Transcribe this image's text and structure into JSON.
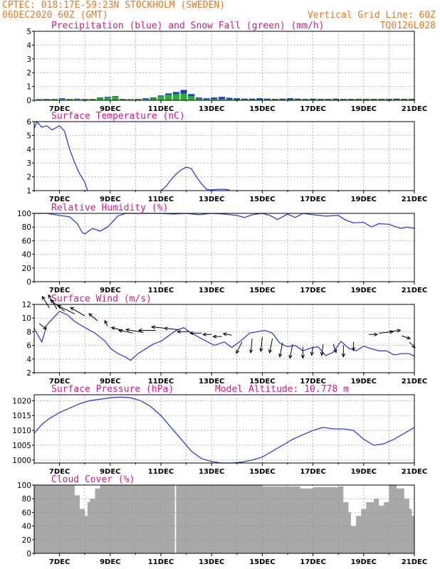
{
  "header": {
    "line1": "CPTEC:  018:17E-59:23N  STOCKHOLM (SWEDEN)",
    "line2_left": "06DEC2020 60Z (GMT)",
    "line2_right": "Vertical Grid Line: 60Z",
    "code": "TQ0126L028"
  },
  "colors": {
    "header": "#e07a1f",
    "title": "#e0148c",
    "line": "#2a3fe0",
    "precip": "#1a38d8",
    "snow": "#22b822",
    "cloud": "#a8a8a8",
    "wind_arrow": "#000000"
  },
  "chart_data": [
    {
      "type": "bar",
      "title": "Precipitation (blue) and Snow Fall (green) (mm/h)",
      "x_range": [
        6.0,
        21.0
      ],
      "x_ticks": [
        "7DEC",
        "9DEC",
        "11DEC",
        "13DEC",
        "15DEC",
        "17DEC",
        "19DEC",
        "21DEC"
      ],
      "ylim": [
        0,
        5
      ],
      "y_ticks": [
        "0",
        "1",
        "2",
        "3",
        "4",
        "5"
      ],
      "grid": true,
      "series": [
        {
          "name": "Precipitation",
          "x": [
            6.2,
            6.5,
            6.8,
            7.1,
            7.4,
            7.7,
            8.0,
            8.3,
            8.6,
            8.9,
            9.2,
            9.5,
            9.8,
            10.1,
            10.4,
            10.7,
            11.0,
            11.3,
            11.6,
            11.9,
            12.2,
            12.5,
            12.8,
            13.1,
            13.4,
            13.7,
            14.0,
            14.3,
            14.6,
            14.9,
            15.2,
            15.5,
            15.8,
            16.1,
            16.4,
            16.7,
            17.0,
            17.3,
            17.6,
            17.9,
            18.2,
            18.5,
            18.8,
            19.1,
            19.4,
            19.7,
            20.0,
            20.3,
            20.6,
            20.9
          ],
          "values": [
            0.08,
            0.1,
            0.1,
            0.15,
            0.1,
            0.12,
            0.1,
            0.1,
            0.2,
            0.25,
            0.3,
            0.1,
            0.08,
            0.1,
            0.15,
            0.2,
            0.35,
            0.5,
            0.6,
            0.75,
            0.45,
            0.2,
            0.15,
            0.2,
            0.25,
            0.18,
            0.15,
            0.12,
            0.12,
            0.15,
            0.12,
            0.1,
            0.12,
            0.15,
            0.12,
            0.1,
            0.12,
            0.1,
            0.1,
            0.12,
            0.1,
            0.1,
            0.1,
            0.1,
            0.1,
            0.1,
            0.1,
            0.12,
            0.1,
            0.1
          ]
        },
        {
          "name": "Snow Fall",
          "x": [
            6.2,
            6.5,
            6.8,
            7.1,
            7.4,
            7.7,
            8.0,
            8.3,
            8.6,
            8.9,
            9.2,
            9.5,
            9.8,
            10.1,
            10.4,
            10.7,
            11.0,
            11.3,
            11.6,
            11.9,
            12.2,
            12.5,
            12.8,
            13.1,
            13.4,
            13.7,
            14.0,
            14.3,
            14.6,
            14.9,
            15.2,
            15.5,
            15.8,
            16.1,
            16.4,
            16.7,
            17.0,
            17.3,
            17.6,
            17.9,
            18.2,
            18.5,
            18.8,
            19.1,
            19.4,
            19.7,
            20.0,
            20.3,
            20.6,
            20.9
          ],
          "values": [
            0.05,
            0.08,
            0.08,
            0.1,
            0.08,
            0.1,
            0.08,
            0.08,
            0.15,
            0.2,
            0.25,
            0.08,
            0.05,
            0.08,
            0.1,
            0.15,
            0.3,
            0.4,
            0.45,
            0.5,
            0.3,
            0.12,
            0.08,
            0.1,
            0.1,
            0.08,
            0.05,
            0.05,
            0.05,
            0.05,
            0.05,
            0.05,
            0.05,
            0.05,
            0.05,
            0.05,
            0.05,
            0.05,
            0.05,
            0.05,
            0.05,
            0.05,
            0.05,
            0.05,
            0.05,
            0.05,
            0.05,
            0.05,
            0.05,
            0.05
          ]
        }
      ]
    },
    {
      "type": "line",
      "title": "Surface Temperature (nC)",
      "x_range": [
        6.0,
        21.0
      ],
      "x_ticks": [
        "7DEC",
        "9DEC",
        "11DEC",
        "13DEC",
        "15DEC",
        "17DEC",
        "19DEC",
        "21DEC"
      ],
      "ylim": [
        1,
        6
      ],
      "y_ticks": [
        "1",
        "2",
        "3",
        "4",
        "5",
        "6"
      ],
      "grid": true,
      "series": [
        {
          "x": [
            6.0,
            6.1,
            6.3,
            6.5,
            6.7,
            6.9,
            7.0,
            7.2,
            7.4,
            7.6,
            7.8,
            8.0,
            8.1
          ],
          "values": [
            5.5,
            6.0,
            5.6,
            5.7,
            5.4,
            5.6,
            5.7,
            5.3,
            4.0,
            3.0,
            2.2,
            1.6,
            1.0
          ]
        },
        {
          "x": [
            11.0,
            11.2,
            11.4,
            11.6,
            11.8,
            12.0,
            12.2,
            12.4,
            12.6,
            12.8,
            13.0,
            13.3,
            13.5,
            13.7
          ],
          "values": [
            1.0,
            1.3,
            1.8,
            2.2,
            2.5,
            2.7,
            2.6,
            2.0,
            1.5,
            1.1,
            1.05,
            1.1,
            1.1,
            1.05
          ]
        }
      ]
    },
    {
      "type": "line",
      "title": "Relative Humidity (%)",
      "x_range": [
        6.0,
        21.0
      ],
      "x_ticks": [
        "7DEC",
        "9DEC",
        "11DEC",
        "13DEC",
        "15DEC",
        "17DEC",
        "19DEC",
        "21DEC"
      ],
      "ylim": [
        0,
        100
      ],
      "y_ticks": [
        "0",
        "20",
        "40",
        "60",
        "80",
        "100"
      ],
      "grid": true,
      "series": [
        {
          "x": [
            6.0,
            6.5,
            7.0,
            7.4,
            7.7,
            7.9,
            8.0,
            8.3,
            8.6,
            8.9,
            9.1,
            9.3,
            9.6,
            10.0,
            11.0,
            11.5,
            12.0,
            12.5,
            13.0,
            13.5,
            14.0,
            14.3,
            14.6,
            15.0,
            15.3,
            15.6,
            16.0,
            16.3,
            16.6,
            17.0,
            17.5,
            18.0,
            18.3,
            18.6,
            19.0,
            19.3,
            19.6,
            20.0,
            20.3,
            20.5,
            20.7,
            21.0
          ],
          "values": [
            100,
            100,
            97,
            95,
            85,
            72,
            70,
            78,
            74,
            80,
            88,
            96,
            100,
            100,
            100,
            99,
            100,
            98,
            100,
            99,
            97,
            94,
            98,
            100,
            97,
            91,
            99,
            94,
            100,
            98,
            96,
            97,
            90,
            86,
            87,
            80,
            85,
            84,
            80,
            78,
            80,
            78
          ]
        }
      ]
    },
    {
      "type": "line",
      "title": "Surface Wind (m/s)",
      "x_range": [
        6.0,
        21.0
      ],
      "x_ticks": [
        "7DEC",
        "9DEC",
        "11DEC",
        "13DEC",
        "15DEC",
        "17DEC",
        "19DEC",
        "21DEC"
      ],
      "ylim": [
        2,
        12
      ],
      "y_ticks": [
        "2",
        "4",
        "6",
        "8",
        "10",
        "12"
      ],
      "grid": true,
      "series": [
        {
          "x": [
            6.0,
            6.3,
            6.5,
            6.8,
            7.0,
            7.3,
            7.6,
            8.0,
            8.4,
            8.8,
            9.0,
            9.3,
            9.6,
            9.8,
            10.1,
            10.4,
            10.7,
            11.0,
            11.3,
            11.6,
            11.9,
            12.2,
            12.5,
            12.8,
            13.1,
            13.5,
            13.8,
            14.2,
            14.5,
            14.8,
            15.1,
            15.4,
            15.7,
            16.0,
            16.3,
            16.6,
            16.9,
            17.2,
            17.5,
            17.8,
            18.1,
            18.4,
            18.7,
            19.0,
            19.3,
            19.6,
            19.9,
            20.2,
            20.5,
            20.8,
            21.0
          ],
          "values": [
            8.5,
            6.5,
            9.0,
            10.2,
            11.0,
            10.5,
            9.5,
            8.6,
            7.8,
            6.6,
            5.6,
            4.8,
            4.3,
            3.8,
            4.8,
            5.5,
            6.2,
            6.6,
            7.4,
            8.2,
            8.6,
            7.8,
            7.2,
            6.6,
            6.0,
            6.5,
            5.7,
            6.8,
            7.8,
            8.0,
            8.2,
            7.8,
            6.3,
            5.8,
            6.0,
            5.2,
            5.6,
            5.8,
            4.5,
            5.0,
            6.6,
            5.6,
            5.2,
            5.9,
            5.5,
            5.2,
            5.2,
            4.6,
            4.8,
            4.8,
            4.4
          ]
        }
      ],
      "arrows": {
        "x": [
          6.2,
          6.6,
          6.9,
          7.2,
          7.6,
          8.0,
          8.5,
          8.9,
          9.5,
          9.9,
          10.3,
          10.8,
          11.2,
          11.7,
          12.1,
          12.6,
          13.0,
          13.4,
          13.8,
          14.2,
          14.6,
          15.0,
          15.4,
          15.8,
          16.2,
          16.6,
          17.0,
          17.4,
          17.8,
          18.2,
          18.6,
          19.2,
          19.6,
          20.0,
          20.5,
          20.8
        ],
        "y": [
          9.2,
          11.5,
          11.3,
          11.0,
          10.6,
          10.3,
          9.6,
          8.8,
          8.2,
          7.8,
          7.9,
          8.2,
          8.5,
          8.3,
          8.0,
          7.8,
          7.6,
          7.3,
          7.5,
          6.5,
          7.0,
          7.2,
          7.0,
          6.4,
          6.2,
          5.8,
          5.8,
          6.2,
          6.2,
          6.0,
          6.5,
          7.6,
          7.8,
          8.0,
          7.4,
          6.5
        ],
        "u": [
          0.25,
          -0.25,
          -0.3,
          -0.5,
          -0.6,
          -0.5,
          -0.3,
          -0.1,
          -0.4,
          -0.5,
          -0.6,
          -0.6,
          -0.5,
          -0.5,
          -0.4,
          -0.4,
          -0.3,
          -0.3,
          -0.3,
          -0.2,
          -0.05,
          -0.05,
          -0.1,
          -0.1,
          -0.1,
          0.0,
          -0.05,
          -0.05,
          0.1,
          0.0,
          0.0,
          0.3,
          0.5,
          0.4,
          0.3,
          0.2
        ],
        "v": [
          -0.2,
          0.4,
          0.5,
          0.4,
          0.3,
          0.3,
          0.25,
          0.2,
          0.1,
          0.1,
          0.1,
          0.0,
          0.05,
          0.05,
          0.0,
          0.0,
          0.0,
          0.0,
          0.05,
          -0.4,
          -0.5,
          -0.5,
          -0.5,
          -0.5,
          -0.5,
          -0.4,
          -0.3,
          -0.4,
          -0.3,
          -0.4,
          -0.3,
          0.0,
          0.05,
          0.05,
          -0.1,
          -0.2
        ]
      }
    },
    {
      "type": "line",
      "title": "Surface Pressure (hPa)",
      "annotation": "Model Altitude: 10.778 m",
      "x_range": [
        6.0,
        21.0
      ],
      "x_ticks": [
        "7DEC",
        "9DEC",
        "11DEC",
        "13DEC",
        "15DEC",
        "17DEC",
        "19DEC",
        "21DEC"
      ],
      "ylim": [
        999,
        1022
      ],
      "y_ticks": [
        "1000",
        "1005",
        "1010",
        "1015",
        "1020"
      ],
      "grid": true,
      "series": [
        {
          "x": [
            6.0,
            6.3,
            6.6,
            7.0,
            7.4,
            7.8,
            8.2,
            8.6,
            9.0,
            9.4,
            9.8,
            10.2,
            10.6,
            11.0,
            11.4,
            11.8,
            12.2,
            12.6,
            13.0,
            13.4,
            13.8,
            14.2,
            14.6,
            15.0,
            15.4,
            15.8,
            16.2,
            16.6,
            17.0,
            17.4,
            17.8,
            18.2,
            18.6,
            19.0,
            19.4,
            19.8,
            20.2,
            20.6,
            21.0
          ],
          "values": [
            1009,
            1012,
            1014,
            1016,
            1017.5,
            1019,
            1020,
            1020.5,
            1021,
            1021.2,
            1021,
            1020,
            1018,
            1015,
            1011,
            1007,
            1003,
            1000.5,
            999.5,
            999,
            999,
            999.3,
            1000,
            1001,
            1003,
            1005,
            1007,
            1008.5,
            1010,
            1011,
            1010.5,
            1010.5,
            1010,
            1007,
            1005,
            1005.5,
            1007,
            1009,
            1011
          ]
        }
      ]
    },
    {
      "type": "area",
      "title": "Cloud Cover (%)",
      "x_range": [
        6.0,
        21.0
      ],
      "x_ticks": [
        "7DEC",
        "9DEC",
        "11DEC",
        "13DEC",
        "15DEC",
        "17DEC",
        "19DEC",
        "21DEC"
      ],
      "ylim": [
        0,
        100
      ],
      "y_ticks": [
        "0",
        "20",
        "40",
        "60",
        "80",
        "100"
      ],
      "grid": true,
      "series": [
        {
          "x": [
            6.0,
            7.5,
            7.6,
            7.8,
            8.0,
            8.1,
            8.2,
            8.4,
            8.6,
            10.0,
            11.0,
            11.5,
            11.55,
            11.6,
            13.0,
            15.0,
            16.5,
            17.0,
            18.0,
            18.2,
            18.4,
            18.5,
            18.7,
            18.9,
            19.1,
            19.4,
            19.6,
            19.8,
            20.0,
            20.3,
            20.6,
            20.8,
            20.9,
            21.0
          ],
          "values": [
            100,
            100,
            85,
            65,
            55,
            75,
            80,
            95,
            100,
            100,
            100,
            100,
            0,
            100,
            100,
            98,
            95,
            97,
            98,
            75,
            60,
            40,
            55,
            65,
            75,
            80,
            70,
            75,
            100,
            95,
            80,
            65,
            55,
            60
          ]
        }
      ]
    }
  ]
}
